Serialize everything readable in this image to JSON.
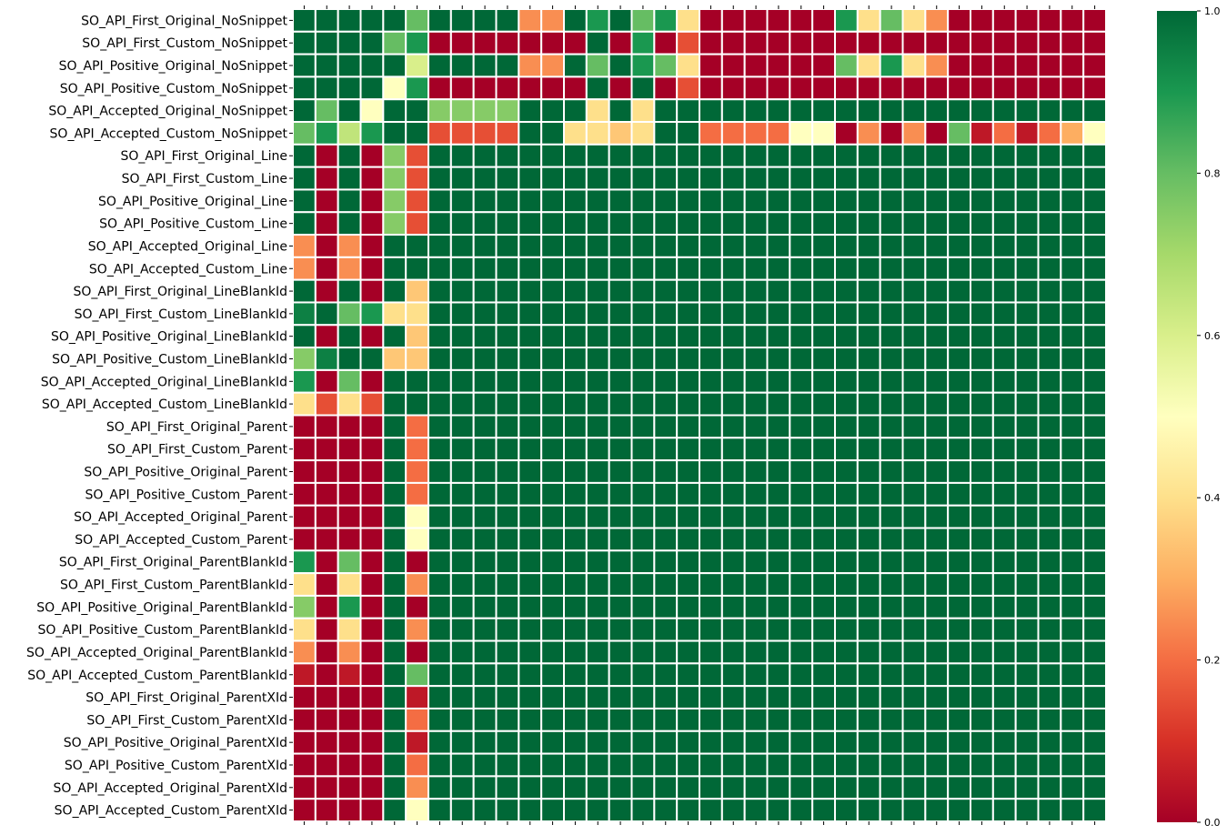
{
  "chart_data": {
    "type": "heatmap",
    "title": "",
    "xlabel": "",
    "ylabel": "",
    "rows": [
      "SO_API_First_Original_NoSnippet",
      "SO_API_First_Custom_NoSnippet",
      "SO_API_Positive_Original_NoSnippet",
      "SO_API_Positive_Custom_NoSnippet",
      "SO_API_Accepted_Original_NoSnippet",
      "SO_API_Accepted_Custom_NoSnippet",
      "SO_API_First_Original_Line",
      "SO_API_First_Custom_Line",
      "SO_API_Positive_Original_Line",
      "SO_API_Positive_Custom_Line",
      "SO_API_Accepted_Original_Line",
      "SO_API_Accepted_Custom_Line",
      "SO_API_First_Original_LineBlankId",
      "SO_API_First_Custom_LineBlankId",
      "SO_API_Positive_Original_LineBlankId",
      "SO_API_Positive_Custom_LineBlankId",
      "SO_API_Accepted_Original_LineBlankId",
      "SO_API_Accepted_Custom_LineBlankId",
      "SO_API_First_Original_Parent",
      "SO_API_First_Custom_Parent",
      "SO_API_Positive_Original_Parent",
      "SO_API_Positive_Custom_Parent",
      "SO_API_Accepted_Original_Parent",
      "SO_API_Accepted_Custom_Parent",
      "SO_API_First_Original_ParentBlankId",
      "SO_API_First_Custom_ParentBlankId",
      "SO_API_Positive_Original_ParentBlankId",
      "SO_API_Positive_Custom_ParentBlankId",
      "SO_API_Accepted_Original_ParentBlankId",
      "SO_API_Accepted_Custom_ParentBlankId",
      "SO_API_First_Original_ParentXId",
      "SO_API_First_Custom_ParentXId",
      "SO_API_Positive_Original_ParentXId",
      "SO_API_Positive_Custom_ParentXId",
      "SO_API_Accepted_Original_ParentXId",
      "SO_API_Accepted_Custom_ParentXId"
    ],
    "n_cols": 36,
    "values": [
      [
        1,
        1,
        1,
        1,
        1,
        0.8,
        1,
        1,
        1,
        1,
        0.25,
        0.25,
        1,
        0.9,
        1,
        0.8,
        0.9,
        0.4,
        0,
        0,
        0,
        0,
        0,
        0,
        0.9,
        0.4,
        0.8,
        0.4,
        0.25,
        0,
        0,
        0,
        0,
        0,
        0,
        0
      ],
      [
        1,
        1,
        1,
        1,
        0.8,
        0.9,
        0,
        0,
        0,
        0,
        0,
        0,
        0,
        1,
        0,
        0.9,
        0,
        0.15,
        0,
        0,
        0,
        0,
        0,
        0,
        0,
        0,
        0,
        0,
        0,
        0,
        0,
        0,
        0,
        0,
        0,
        0
      ],
      [
        1,
        1,
        1,
        1,
        1,
        0.6,
        1,
        1,
        1,
        1,
        0.25,
        0.25,
        1,
        0.8,
        1,
        0.9,
        0.8,
        0.4,
        0,
        0,
        0,
        0,
        0,
        0,
        0.8,
        0.4,
        0.9,
        0.4,
        0.25,
        0,
        0,
        0,
        0,
        0,
        0,
        0
      ],
      [
        1,
        1,
        1,
        1,
        0.5,
        0.9,
        0,
        0,
        0,
        0,
        0,
        0,
        0,
        1,
        0,
        1,
        0,
        0.15,
        0,
        0,
        0,
        0,
        0,
        0,
        0,
        0,
        0,
        0,
        0,
        0,
        0,
        0,
        0,
        0,
        0,
        0
      ],
      [
        1,
        0.8,
        1,
        0.5,
        1,
        1,
        0.75,
        0.75,
        0.75,
        0.75,
        1,
        1,
        1,
        0.4,
        1,
        0.4,
        1,
        1,
        1,
        1,
        1,
        1,
        1,
        1,
        1,
        1,
        1,
        1,
        1,
        1,
        1,
        1,
        1,
        1,
        1,
        1
      ],
      [
        0.8,
        0.9,
        0.65,
        0.9,
        1,
        1,
        0.15,
        0.15,
        0.15,
        0.15,
        1,
        1,
        0.4,
        0.4,
        0.35,
        0.4,
        1,
        1,
        0.2,
        0.2,
        0.2,
        0.2,
        0.5,
        0.5,
        0,
        0.25,
        0,
        0.25,
        0,
        0.8,
        0.05,
        0.2,
        0.05,
        0.2,
        0.3,
        0.5
      ],
      [
        1,
        0,
        1,
        0,
        0.75,
        0.15,
        1,
        1,
        1,
        1,
        1,
        1,
        1,
        1,
        1,
        1,
        1,
        1,
        1,
        1,
        1,
        1,
        1,
        1,
        1,
        1,
        1,
        1,
        1,
        1,
        1,
        1,
        1,
        1,
        1,
        1
      ],
      [
        1,
        0,
        1,
        0,
        0.75,
        0.15,
        1,
        1,
        1,
        1,
        1,
        1,
        1,
        1,
        1,
        1,
        1,
        1,
        1,
        1,
        1,
        1,
        1,
        1,
        1,
        1,
        1,
        1,
        1,
        1,
        1,
        1,
        1,
        1,
        1,
        1
      ],
      [
        1,
        0,
        1,
        0,
        0.75,
        0.15,
        1,
        1,
        1,
        1,
        1,
        1,
        1,
        1,
        1,
        1,
        1,
        1,
        1,
        1,
        1,
        1,
        1,
        1,
        1,
        1,
        1,
        1,
        1,
        1,
        1,
        1,
        1,
        1,
        1,
        1
      ],
      [
        1,
        0,
        1,
        0,
        0.75,
        0.15,
        1,
        1,
        1,
        1,
        1,
        1,
        1,
        1,
        1,
        1,
        1,
        1,
        1,
        1,
        1,
        1,
        1,
        1,
        1,
        1,
        1,
        1,
        1,
        1,
        1,
        1,
        1,
        1,
        1,
        1
      ],
      [
        0.25,
        0,
        0.25,
        0,
        1,
        1,
        1,
        1,
        1,
        1,
        1,
        1,
        1,
        1,
        1,
        1,
        1,
        1,
        1,
        1,
        1,
        1,
        1,
        1,
        1,
        1,
        1,
        1,
        1,
        1,
        1,
        1,
        1,
        1,
        1,
        1
      ],
      [
        0.25,
        0,
        0.25,
        0,
        1,
        1,
        1,
        1,
        1,
        1,
        1,
        1,
        1,
        1,
        1,
        1,
        1,
        1,
        1,
        1,
        1,
        1,
        1,
        1,
        1,
        1,
        1,
        1,
        1,
        1,
        1,
        1,
        1,
        1,
        1,
        1
      ],
      [
        1,
        0,
        1,
        0,
        1,
        0.35,
        1,
        1,
        1,
        1,
        1,
        1,
        1,
        1,
        1,
        1,
        1,
        1,
        1,
        1,
        1,
        1,
        1,
        1,
        1,
        1,
        1,
        1,
        1,
        1,
        1,
        1,
        1,
        1,
        1,
        1
      ],
      [
        0.95,
        1,
        0.8,
        0.9,
        0.4,
        0.4,
        1,
        1,
        1,
        1,
        1,
        1,
        1,
        1,
        1,
        1,
        1,
        1,
        1,
        1,
        1,
        1,
        1,
        1,
        1,
        1,
        1,
        1,
        1,
        1,
        1,
        1,
        1,
        1,
        1,
        1
      ],
      [
        1,
        0,
        1,
        0,
        1,
        0.35,
        1,
        1,
        1,
        1,
        1,
        1,
        1,
        1,
        1,
        1,
        1,
        1,
        1,
        1,
        1,
        1,
        1,
        1,
        1,
        1,
        1,
        1,
        1,
        1,
        1,
        1,
        1,
        1,
        1,
        1
      ],
      [
        0.75,
        0.95,
        1,
        1,
        0.35,
        0.35,
        1,
        1,
        1,
        1,
        1,
        1,
        1,
        1,
        1,
        1,
        1,
        1,
        1,
        1,
        1,
        1,
        1,
        1,
        1,
        1,
        1,
        1,
        1,
        1,
        1,
        1,
        1,
        1,
        1,
        1
      ],
      [
        0.9,
        0,
        0.8,
        0,
        1,
        1,
        1,
        1,
        1,
        1,
        1,
        1,
        1,
        1,
        1,
        1,
        1,
        1,
        1,
        1,
        1,
        1,
        1,
        1,
        1,
        1,
        1,
        1,
        1,
        1,
        1,
        1,
        1,
        1,
        1,
        1
      ],
      [
        0.4,
        0.15,
        0.4,
        0.15,
        1,
        1,
        1,
        1,
        1,
        1,
        1,
        1,
        1,
        1,
        1,
        1,
        1,
        1,
        1,
        1,
        1,
        1,
        1,
        1,
        1,
        1,
        1,
        1,
        1,
        1,
        1,
        1,
        1,
        1,
        1,
        1
      ],
      [
        0,
        0,
        0,
        0,
        1,
        0.2,
        1,
        1,
        1,
        1,
        1,
        1,
        1,
        1,
        1,
        1,
        1,
        1,
        1,
        1,
        1,
        1,
        1,
        1,
        1,
        1,
        1,
        1,
        1,
        1,
        1,
        1,
        1,
        1,
        1,
        1
      ],
      [
        0,
        0,
        0,
        0,
        1,
        0.2,
        1,
        1,
        1,
        1,
        1,
        1,
        1,
        1,
        1,
        1,
        1,
        1,
        1,
        1,
        1,
        1,
        1,
        1,
        1,
        1,
        1,
        1,
        1,
        1,
        1,
        1,
        1,
        1,
        1,
        1
      ],
      [
        0,
        0,
        0,
        0,
        1,
        0.2,
        1,
        1,
        1,
        1,
        1,
        1,
        1,
        1,
        1,
        1,
        1,
        1,
        1,
        1,
        1,
        1,
        1,
        1,
        1,
        1,
        1,
        1,
        1,
        1,
        1,
        1,
        1,
        1,
        1,
        1
      ],
      [
        0,
        0,
        0,
        0,
        1,
        0.2,
        1,
        1,
        1,
        1,
        1,
        1,
        1,
        1,
        1,
        1,
        1,
        1,
        1,
        1,
        1,
        1,
        1,
        1,
        1,
        1,
        1,
        1,
        1,
        1,
        1,
        1,
        1,
        1,
        1,
        1
      ],
      [
        0,
        0,
        0,
        0,
        1,
        0.5,
        1,
        1,
        1,
        1,
        1,
        1,
        1,
        1,
        1,
        1,
        1,
        1,
        1,
        1,
        1,
        1,
        1,
        1,
        1,
        1,
        1,
        1,
        1,
        1,
        1,
        1,
        1,
        1,
        1,
        1
      ],
      [
        0,
        0,
        0,
        0,
        1,
        0.5,
        1,
        1,
        1,
        1,
        1,
        1,
        1,
        1,
        1,
        1,
        1,
        1,
        1,
        1,
        1,
        1,
        1,
        1,
        1,
        1,
        1,
        1,
        1,
        1,
        1,
        1,
        1,
        1,
        1,
        1
      ],
      [
        0.9,
        0,
        0.8,
        0,
        1,
        0,
        1,
        1,
        1,
        1,
        1,
        1,
        1,
        1,
        1,
        1,
        1,
        1,
        1,
        1,
        1,
        1,
        1,
        1,
        1,
        1,
        1,
        1,
        1,
        1,
        1,
        1,
        1,
        1,
        1,
        1
      ],
      [
        0.4,
        0,
        0.4,
        0,
        1,
        0.25,
        1,
        1,
        1,
        1,
        1,
        1,
        1,
        1,
        1,
        1,
        1,
        1,
        1,
        1,
        1,
        1,
        1,
        1,
        1,
        1,
        1,
        1,
        1,
        1,
        1,
        1,
        1,
        1,
        1,
        1
      ],
      [
        0.75,
        0,
        0.9,
        0,
        1,
        0,
        1,
        1,
        1,
        1,
        1,
        1,
        1,
        1,
        1,
        1,
        1,
        1,
        1,
        1,
        1,
        1,
        1,
        1,
        1,
        1,
        1,
        1,
        1,
        1,
        1,
        1,
        1,
        1,
        1,
        1
      ],
      [
        0.4,
        0,
        0.4,
        0,
        1,
        0.25,
        1,
        1,
        1,
        1,
        1,
        1,
        1,
        1,
        1,
        1,
        1,
        1,
        1,
        1,
        1,
        1,
        1,
        1,
        1,
        1,
        1,
        1,
        1,
        1,
        1,
        1,
        1,
        1,
        1,
        1
      ],
      [
        0.25,
        0,
        0.25,
        0,
        1,
        0,
        1,
        1,
        1,
        1,
        1,
        1,
        1,
        1,
        1,
        1,
        1,
        1,
        1,
        1,
        1,
        1,
        1,
        1,
        1,
        1,
        1,
        1,
        1,
        1,
        1,
        1,
        1,
        1,
        1,
        1
      ],
      [
        0.05,
        0,
        0.05,
        0,
        1,
        0.8,
        1,
        1,
        1,
        1,
        1,
        1,
        1,
        1,
        1,
        1,
        1,
        1,
        1,
        1,
        1,
        1,
        1,
        1,
        1,
        1,
        1,
        1,
        1,
        1,
        1,
        1,
        1,
        1,
        1,
        1
      ],
      [
        0,
        0,
        0,
        0,
        1,
        0.05,
        1,
        1,
        1,
        1,
        1,
        1,
        1,
        1,
        1,
        1,
        1,
        1,
        1,
        1,
        1,
        1,
        1,
        1,
        1,
        1,
        1,
        1,
        1,
        1,
        1,
        1,
        1,
        1,
        1,
        1
      ],
      [
        0,
        0,
        0,
        0,
        1,
        0.2,
        1,
        1,
        1,
        1,
        1,
        1,
        1,
        1,
        1,
        1,
        1,
        1,
        1,
        1,
        1,
        1,
        1,
        1,
        1,
        1,
        1,
        1,
        1,
        1,
        1,
        1,
        1,
        1,
        1,
        1
      ],
      [
        0,
        0,
        0,
        0,
        1,
        0.05,
        1,
        1,
        1,
        1,
        1,
        1,
        1,
        1,
        1,
        1,
        1,
        1,
        1,
        1,
        1,
        1,
        1,
        1,
        1,
        1,
        1,
        1,
        1,
        1,
        1,
        1,
        1,
        1,
        1,
        1
      ],
      [
        0,
        0,
        0,
        0,
        1,
        0.2,
        1,
        1,
        1,
        1,
        1,
        1,
        1,
        1,
        1,
        1,
        1,
        1,
        1,
        1,
        1,
        1,
        1,
        1,
        1,
        1,
        1,
        1,
        1,
        1,
        1,
        1,
        1,
        1,
        1,
        1
      ],
      [
        0,
        0,
        0,
        0,
        1,
        0.25,
        1,
        1,
        1,
        1,
        1,
        1,
        1,
        1,
        1,
        1,
        1,
        1,
        1,
        1,
        1,
        1,
        1,
        1,
        1,
        1,
        1,
        1,
        1,
        1,
        1,
        1,
        1,
        1,
        1,
        1
      ],
      [
        0,
        0,
        0,
        0,
        1,
        0.5,
        1,
        1,
        1,
        1,
        1,
        1,
        1,
        1,
        1,
        1,
        1,
        1,
        1,
        1,
        1,
        1,
        1,
        1,
        1,
        1,
        1,
        1,
        1,
        1,
        1,
        1,
        1,
        1,
        1,
        1
      ]
    ],
    "colorbar": {
      "range": [
        0,
        1
      ],
      "ticks": [
        "0.0",
        "0.2",
        "0.4",
        "0.6",
        "0.8",
        "1.0"
      ],
      "colormap": "RdYlGn",
      "stops": [
        "#a50026",
        "#d73027",
        "#f46d43",
        "#fdae61",
        "#fee08b",
        "#ffffbf",
        "#d9ef8b",
        "#a6d96a",
        "#66bd63",
        "#1a9850",
        "#006837"
      ]
    },
    "cell_border_color": "#ffffff",
    "legend": "colorbar-right",
    "grid": false
  }
}
